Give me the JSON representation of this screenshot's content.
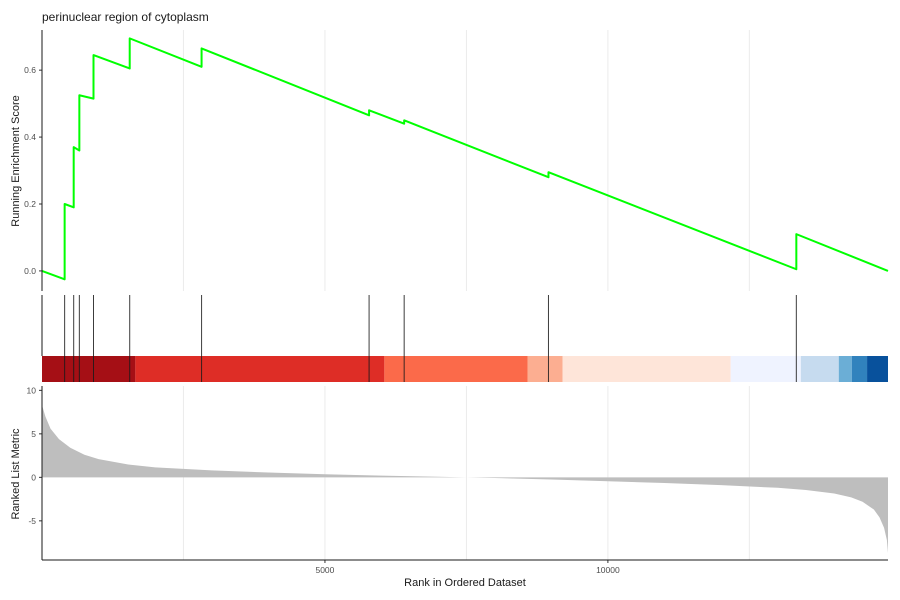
{
  "chart_data": {
    "type": "line",
    "title": "perinuclear region of cytoplasm",
    "xlabel": "Rank in Ordered Dataset",
    "xlim": [
      0,
      14950
    ],
    "x_ticks": [
      5000,
      10000
    ],
    "x_tick_labels": [
      "5000",
      "10000"
    ],
    "panels": [
      {
        "name": "running_enrichment",
        "ylabel": "Running Enrichment Score",
        "ylim": [
          -0.06,
          0.72
        ],
        "y_ticks": [
          0.0,
          0.2,
          0.4,
          0.6
        ],
        "y_tick_labels": [
          "0.0",
          "0.2",
          "0.4",
          "0.6"
        ],
        "grid": true,
        "line_color": "#00FF00",
        "points": [
          [
            0,
            0.0
          ],
          [
            400,
            -0.025
          ],
          [
            400,
            0.2
          ],
          [
            560,
            0.19
          ],
          [
            560,
            0.37
          ],
          [
            660,
            0.36
          ],
          [
            660,
            0.525
          ],
          [
            910,
            0.515
          ],
          [
            910,
            0.645
          ],
          [
            1550,
            0.605
          ],
          [
            1550,
            0.695
          ],
          [
            2820,
            0.61
          ],
          [
            2820,
            0.665
          ],
          [
            5780,
            0.465
          ],
          [
            5780,
            0.48
          ],
          [
            6400,
            0.44
          ],
          [
            6400,
            0.45
          ],
          [
            8950,
            0.28
          ],
          [
            8950,
            0.295
          ],
          [
            13330,
            0.005
          ],
          [
            13330,
            0.11
          ],
          [
            14950,
            0.0
          ]
        ]
      },
      {
        "name": "gene_hits",
        "hit_ranks": [
          400,
          560,
          660,
          910,
          1550,
          2820,
          5780,
          6400,
          8950,
          13330
        ],
        "hit_color": "#1a1a1a",
        "color_bands": [
          {
            "from": 0,
            "to": 1650,
            "color": "#A50F15"
          },
          {
            "from": 1650,
            "to": 6050,
            "color": "#DE2D26"
          },
          {
            "from": 6050,
            "to": 8580,
            "color": "#FB6A4A"
          },
          {
            "from": 8580,
            "to": 9200,
            "color": "#FCAE91"
          },
          {
            "from": 9200,
            "to": 12170,
            "color": "#FEE5D9"
          },
          {
            "from": 12170,
            "to": 13410,
            "color": "#EFF3FF"
          },
          {
            "from": 13410,
            "to": 14080,
            "color": "#C6DBEF"
          },
          {
            "from": 14080,
            "to": 14310,
            "color": "#6BAED6"
          },
          {
            "from": 14310,
            "to": 14580,
            "color": "#3182BD"
          },
          {
            "from": 14580,
            "to": 14950,
            "color": "#08519C"
          }
        ]
      },
      {
        "name": "ranked_list_metric",
        "ylabel": "Ranked List Metric",
        "ylim": [
          -9.5,
          10.5
        ],
        "y_ticks": [
          -5,
          0,
          5,
          10
        ],
        "y_tick_labels": [
          "-5",
          "0",
          "5",
          "10"
        ],
        "fill_color": "#BEBEBE",
        "points": [
          [
            0,
            8.3
          ],
          [
            60,
            7.0
          ],
          [
            150,
            5.6
          ],
          [
            300,
            4.4
          ],
          [
            500,
            3.4
          ],
          [
            750,
            2.6
          ],
          [
            1000,
            2.1
          ],
          [
            1500,
            1.5
          ],
          [
            2000,
            1.15
          ],
          [
            3000,
            0.8
          ],
          [
            4000,
            0.55
          ],
          [
            5000,
            0.35
          ],
          [
            6000,
            0.2
          ],
          [
            7000,
            0.07
          ],
          [
            7500,
            0.0
          ],
          [
            8000,
            -0.08
          ],
          [
            9000,
            -0.25
          ],
          [
            10000,
            -0.45
          ],
          [
            11000,
            -0.65
          ],
          [
            12000,
            -0.9
          ],
          [
            13000,
            -1.2
          ],
          [
            13500,
            -1.45
          ],
          [
            14000,
            -1.85
          ],
          [
            14300,
            -2.3
          ],
          [
            14500,
            -2.8
          ],
          [
            14700,
            -3.7
          ],
          [
            14800,
            -4.6
          ],
          [
            14880,
            -5.8
          ],
          [
            14930,
            -7.2
          ],
          [
            14950,
            -8.7
          ]
        ]
      }
    ]
  }
}
